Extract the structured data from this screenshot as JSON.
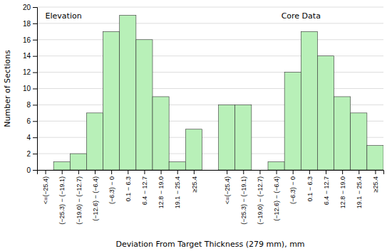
{
  "chart_data": {
    "type": "bar",
    "categories": [
      "<=(−25.4)",
      "(−25.3) − (−19.1)",
      "(−19.0) − (−12.7)",
      "(−12.6) − (−6.4)",
      "(−6.3) − 0",
      "0.1 − 6.3",
      "6.4 − 12.7",
      "12.8 − 19.0",
      "19.1 − 25.4",
      "≥25.4",
      "<=(−25.4)",
      "(−25.3) − (−19.1)",
      "(−19.0) − (−12.7)",
      "(−12.6) − (−6.4)",
      "(−6.3) − 0",
      "0.1 − 6.3",
      "6.4 − 12.7",
      "12.8 − 19.0",
      "19.1 − 25.4",
      "≥25.4"
    ],
    "values": [
      0,
      1,
      2,
      7,
      17,
      19,
      16,
      9,
      1,
      5,
      8,
      8,
      0,
      1,
      12,
      17,
      14,
      9,
      7,
      3
    ],
    "color": "#b8f0b8",
    "xlabel": "Deviation From Target Thickness (279 mm), mm",
    "ylabel": "Number of Sections",
    "annotations": [
      "Elevation",
      "Core Data"
    ],
    "ylim": [
      0,
      20
    ],
    "yticks": [
      0,
      2,
      4,
      6,
      8,
      10,
      12,
      14,
      16,
      18,
      20
    ],
    "grid": true
  }
}
